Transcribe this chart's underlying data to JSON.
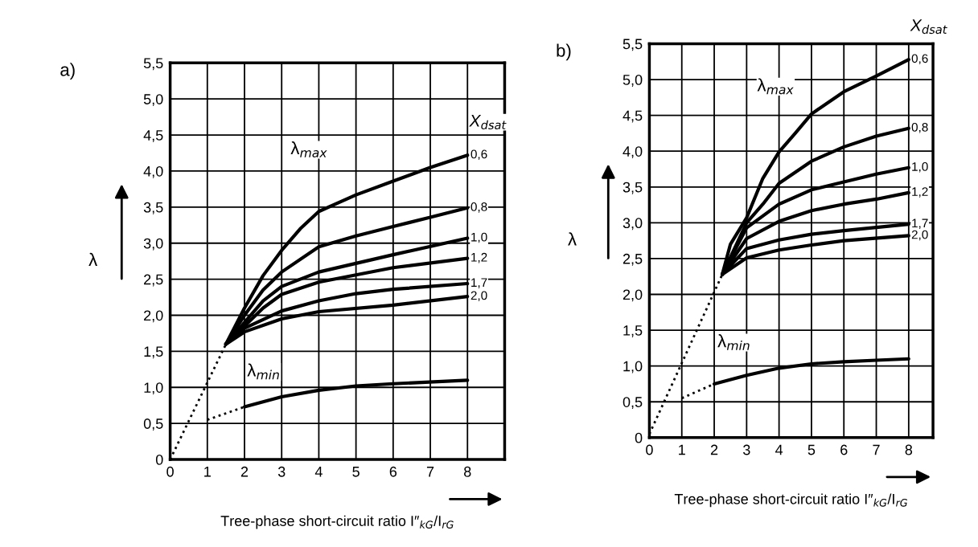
{
  "chart_data": [
    {
      "type": "line",
      "title": "a)",
      "xlabel": "Tree-phase short-circuit ratio I″$_{kG}$/I$_{rG}$",
      "ylabel": "λ",
      "legend_title": "X$_{dsat}$",
      "xlim": [
        0,
        9
      ],
      "ylim": [
        0,
        5.5
      ],
      "xticks": [
        0,
        1,
        2,
        3,
        4,
        5,
        6,
        7,
        8
      ],
      "yticks": [
        0,
        {
          "value": 0.5,
          "label": "0,5"
        },
        {
          "value": 1.0,
          "label": "1,0"
        },
        {
          "value": 1.5,
          "label": "1,5"
        },
        {
          "value": 2.0,
          "label": "2,0"
        },
        {
          "value": 2.5,
          "label": "2,5"
        },
        {
          "value": 3.0,
          "label": "3,0"
        },
        {
          "value": 3.5,
          "label": "3,5"
        },
        {
          "value": 4.0,
          "label": "4,0"
        },
        {
          "value": 4.5,
          "label": "4,5"
        },
        {
          "value": 5.0,
          "label": "5,0"
        },
        {
          "value": 5.5,
          "label": "5,5"
        }
      ],
      "grid": true,
      "legend": false,
      "marker": "none",
      "annotations": [
        "λ$_{max}$",
        "λ$_{min}$"
      ],
      "series": [
        {
          "name": "0,6",
          "color": "#000000",
          "line_style": "solid",
          "x": [
            1.5,
            2,
            2.5,
            3,
            3.5,
            4,
            5,
            6,
            7,
            8
          ],
          "values": [
            1.6,
            2.1,
            2.55,
            2.9,
            3.2,
            3.44,
            3.67,
            3.86,
            4.05,
            4.22
          ]
        },
        {
          "name": "0,8",
          "color": "#000000",
          "line_style": "solid",
          "x": [
            1.5,
            2,
            2.5,
            3,
            4,
            5,
            6,
            7,
            8
          ],
          "values": [
            1.6,
            2.0,
            2.35,
            2.6,
            2.95,
            3.1,
            3.23,
            3.36,
            3.49
          ]
        },
        {
          "name": "1,0",
          "color": "#000000",
          "line_style": "solid",
          "x": [
            1.5,
            2,
            2.5,
            3,
            4,
            5,
            6,
            8
          ],
          "values": [
            1.6,
            1.9,
            2.2,
            2.4,
            2.6,
            2.72,
            2.84,
            3.07
          ]
        },
        {
          "name": "1,2",
          "color": "#000000",
          "line_style": "solid",
          "x": [
            1.5,
            2,
            2.5,
            3,
            4,
            5,
            6,
            8
          ],
          "values": [
            1.6,
            1.85,
            2.1,
            2.29,
            2.46,
            2.56,
            2.66,
            2.79
          ]
        },
        {
          "name": "1,7",
          "color": "#000000",
          "line_style": "solid",
          "x": [
            1.5,
            2,
            3,
            4,
            5,
            6,
            8
          ],
          "values": [
            1.6,
            1.82,
            2.06,
            2.2,
            2.3,
            2.36,
            2.44
          ]
        },
        {
          "name": "2,0",
          "color": "#000000",
          "line_style": "solid",
          "x": [
            1.5,
            2,
            3,
            4,
            6,
            8
          ],
          "values": [
            1.6,
            1.77,
            1.95,
            2.05,
            2.14,
            2.26
          ]
        },
        {
          "color": "#000000",
          "line_style": "dotted",
          "x": [
            0,
            1.5
          ],
          "values": [
            0,
            1.6
          ]
        },
        {
          "color": "#000000",
          "line_style": "dotted",
          "x": [
            1,
            2
          ],
          "values": [
            0.55,
            0.73
          ]
        },
        {
          "color": "#000000",
          "line_style": "solid",
          "x": [
            2,
            3,
            4,
            5,
            6,
            8
          ],
          "values": [
            0.73,
            0.87,
            0.96,
            1.02,
            1.05,
            1.1
          ]
        }
      ]
    },
    {
      "type": "line",
      "title": "b)",
      "xlabel": "Tree-phase short-circuit ratio I″$_{kG}$/I$_{rG}$",
      "ylabel": "λ",
      "legend_title": "X$_{dsat}$",
      "xlim": [
        0,
        8.75
      ],
      "ylim": [
        0,
        5.5
      ],
      "xticks": [
        0,
        1,
        2,
        3,
        4,
        5,
        6,
        7,
        8
      ],
      "yticks": [
        0,
        {
          "value": 0.5,
          "label": "0,5"
        },
        {
          "value": 1.0,
          "label": "1,0"
        },
        {
          "value": 1.5,
          "label": "1,5"
        },
        {
          "value": 2.0,
          "label": "2,0"
        },
        {
          "value": 2.5,
          "label": "2,5"
        },
        {
          "value": 3.0,
          "label": "3,0"
        },
        {
          "value": 3.5,
          "label": "3,5"
        },
        {
          "value": 4.0,
          "label": "4,0"
        },
        {
          "value": 4.5,
          "label": "4,5"
        },
        {
          "value": 5.0,
          "label": "5,0"
        },
        {
          "value": 5.5,
          "label": "5,5"
        }
      ],
      "grid": true,
      "legend": false,
      "marker": "none",
      "annotations": [
        "λ$_{max}$",
        "λ$_{min}$"
      ],
      "series": [
        {
          "name": "0,6",
          "color": "#000000",
          "line_style": "solid",
          "x": [
            2.25,
            2.5,
            3,
            3.5,
            4,
            4.5,
            5,
            6,
            7,
            8
          ],
          "values": [
            2.28,
            2.7,
            3.07,
            3.62,
            3.99,
            4.25,
            4.52,
            4.83,
            5.05,
            5.28
          ]
        },
        {
          "name": "0,8",
          "color": "#000000",
          "line_style": "solid",
          "x": [
            2.25,
            3,
            3.5,
            4,
            5,
            6,
            7,
            8
          ],
          "values": [
            2.28,
            3.0,
            3.26,
            3.55,
            3.86,
            4.06,
            4.21,
            4.32
          ]
        },
        {
          "name": "1,0",
          "color": "#000000",
          "line_style": "solid",
          "x": [
            2.25,
            3,
            4,
            5,
            6,
            7,
            8
          ],
          "values": [
            2.28,
            2.93,
            3.26,
            3.46,
            3.57,
            3.68,
            3.77
          ]
        },
        {
          "name": "1,2",
          "color": "#000000",
          "line_style": "solid",
          "x": [
            2.25,
            3,
            4,
            5,
            6,
            7,
            8
          ],
          "values": [
            2.28,
            2.78,
            3.02,
            3.17,
            3.26,
            3.33,
            3.42
          ]
        },
        {
          "name": "1,7",
          "color": "#000000",
          "line_style": "solid",
          "x": [
            2.25,
            3,
            4,
            5,
            6,
            8
          ],
          "values": [
            2.28,
            2.64,
            2.76,
            2.84,
            2.89,
            2.98
          ]
        },
        {
          "name": "2,0",
          "color": "#000000",
          "line_style": "solid",
          "x": [
            2.25,
            3,
            4,
            5,
            6,
            8
          ],
          "values": [
            2.28,
            2.51,
            2.62,
            2.69,
            2.75,
            2.82
          ]
        },
        {
          "color": "#000000",
          "line_style": "dotted",
          "x": [
            0,
            2.25
          ],
          "values": [
            0.05,
            2.28
          ]
        },
        {
          "color": "#000000",
          "line_style": "dotted",
          "x": [
            1,
            2
          ],
          "values": [
            0.55,
            0.75
          ]
        },
        {
          "color": "#000000",
          "line_style": "solid",
          "x": [
            2,
            3,
            4,
            5,
            6,
            7,
            8
          ],
          "values": [
            0.75,
            0.87,
            0.97,
            1.03,
            1.06,
            1.08,
            1.1
          ]
        }
      ]
    }
  ]
}
